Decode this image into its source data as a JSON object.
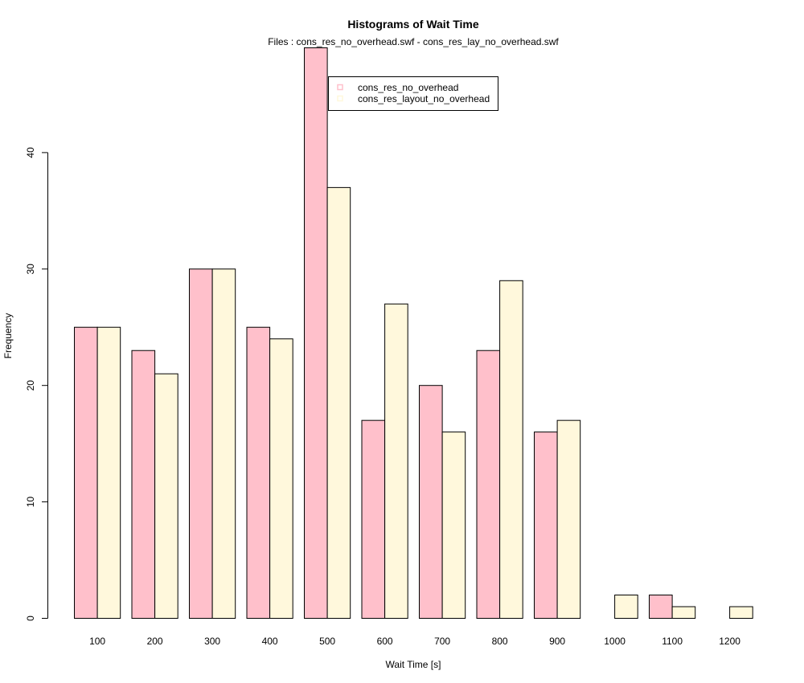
{
  "chart_data": {
    "type": "bar",
    "title": "Histograms of Wait Time",
    "subtitle": "Files : cons_res_no_overhead.swf - cons_res_lay_no_overhead.swf",
    "xlabel": "Wait Time [s]",
    "ylabel": "Frequency",
    "categories": [
      "100",
      "200",
      "300",
      "400",
      "500",
      "600",
      "700",
      "800",
      "900",
      "1000",
      "1100",
      "1200"
    ],
    "series": [
      {
        "name": "cons_res_no_overhead",
        "color": "#ffc0cb",
        "values": [
          25,
          23,
          30,
          25,
          49,
          17,
          20,
          23,
          16,
          0,
          2,
          0
        ]
      },
      {
        "name": "cons_res_layout_no_overhead",
        "color": "#fff8dc",
        "values": [
          25,
          21,
          30,
          24,
          37,
          27,
          16,
          29,
          17,
          2,
          1,
          1
        ]
      }
    ],
    "yticks": [
      0,
      10,
      20,
      30,
      40
    ],
    "ylim": [
      0,
      49
    ],
    "legend_position": "top-center",
    "grid": false
  }
}
